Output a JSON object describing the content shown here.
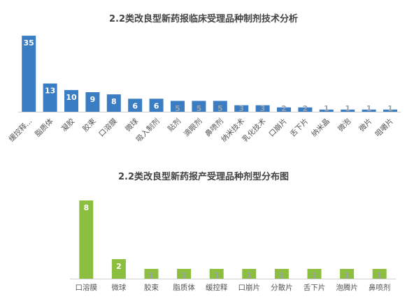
{
  "chart_data": [
    {
      "type": "bar",
      "title": "2.2类改良型新药报临床受理品种制剂技术分析",
      "categories": [
        "缓控释...",
        "脂质体",
        "凝胶",
        "胶束",
        "口溶膜",
        "微球",
        "吸入制剂",
        "贴剂",
        "滴眼剂",
        "鼻喷剂",
        "纳米技术",
        "乳化技术",
        "口崩片",
        "舌下片",
        "纳米晶",
        "微泡",
        "微片",
        "咀嚼片"
      ],
      "values": [
        35,
        13,
        10,
        9,
        8,
        6,
        6,
        5,
        5,
        5,
        3,
        3,
        2,
        2,
        1,
        1,
        1,
        1
      ],
      "ylim": [
        0,
        36
      ],
      "color": "#3a7dc3",
      "grid": false
    },
    {
      "type": "bar",
      "title": "2.2类改良型新药报产受理品种剂型分布图",
      "categories": [
        "口溶膜",
        "微球",
        "胶束",
        "脂质体",
        "缓控释",
        "口崩片",
        "分散片",
        "舌下片",
        "泡腾片",
        "鼻喷剂"
      ],
      "values": [
        8,
        2,
        1,
        1,
        1,
        1,
        1,
        1,
        1,
        1
      ],
      "ylim": [
        0,
        8
      ],
      "color": "#8cbe3f",
      "grid": false
    }
  ]
}
